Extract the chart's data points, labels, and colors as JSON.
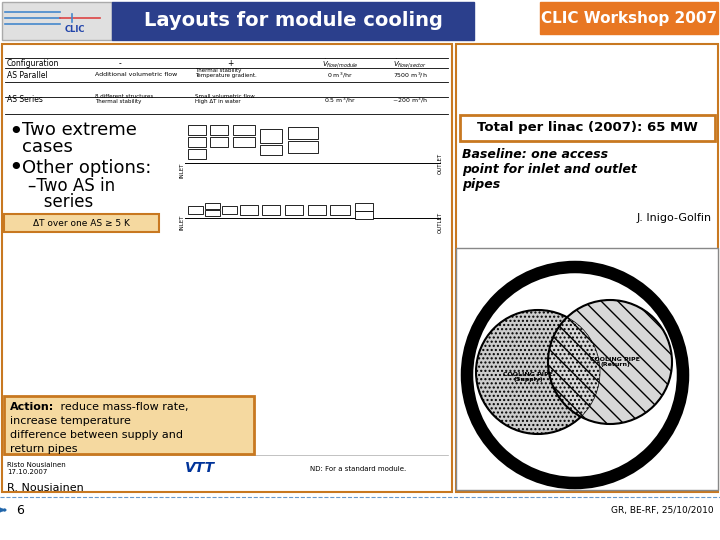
{
  "bg_color": "#f0f0f0",
  "slide_bg": "#ffffff",
  "header_bg": "#2b3f8c",
  "header_text": "Layouts for module cooling",
  "header_text_color": "#ffffff",
  "clic_badge_bg": "#e87722",
  "clic_badge_text": "CLIC Workshop 2007",
  "clic_badge_text_color": "#ffffff",
  "total_box_text": "Total per linac (2007): 65 MW",
  "total_box_border": "#c87820",
  "baseline_text": "Baseline: one access\npoint for inlet and outlet\npipes",
  "author_text": "J. Inigo-Golfin",
  "action_text_bold": "Action:",
  "action_text_rest": " reduce mass-flow rate,\nincrease temperature\ndifference between supply and\nreturn pipes",
  "action_box_bg": "#f5d9a0",
  "action_box_border": "#c87820",
  "footer_left": "R. Nousiainen",
  "slide_number": "6",
  "footer_right": "GR, BE-RF, 25/10/2010",
  "dt_box_bg": "#f5d9a0",
  "dt_box_border": "#c87820",
  "dt_text": "ΔT over one AS ≥ 5 K",
  "left_panel_border": "#c87820",
  "right_panel_border": "#c87820"
}
